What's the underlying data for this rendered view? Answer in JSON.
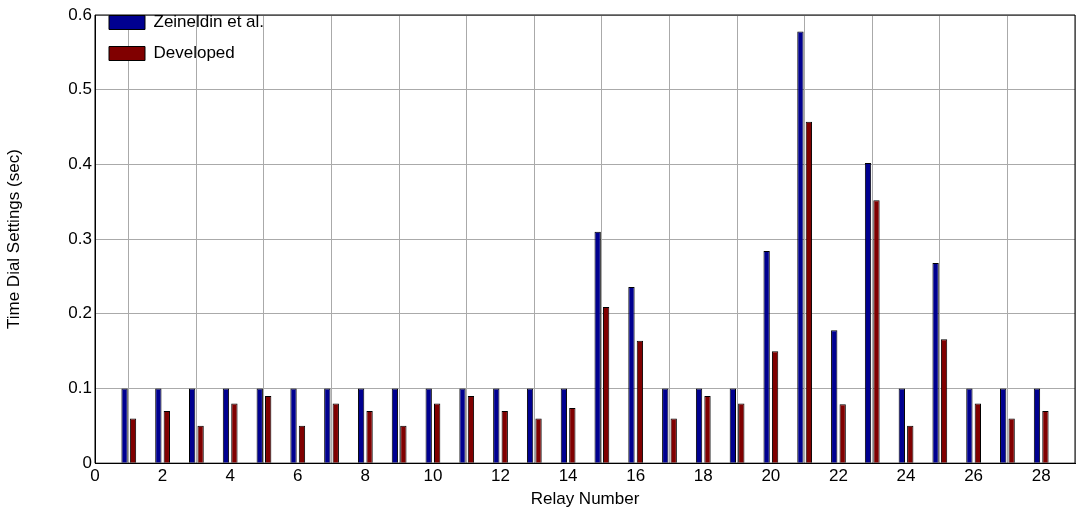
{
  "chart_data": {
    "type": "bar",
    "xlabel": "Relay Number",
    "ylabel": "Time Dial Settings (sec)",
    "x": [
      1,
      2,
      3,
      4,
      5,
      6,
      7,
      8,
      9,
      10,
      11,
      12,
      13,
      14,
      15,
      16,
      17,
      18,
      19,
      20,
      21,
      22,
      23,
      24,
      25,
      26,
      27,
      28
    ],
    "series": [
      {
        "name": "Zeineldin et al.",
        "color": "#000090",
        "values": [
          0.1,
          0.1,
          0.1,
          0.1,
          0.1,
          0.1,
          0.1,
          0.1,
          0.1,
          0.1,
          0.1,
          0.1,
          0.1,
          0.1,
          0.31,
          0.236,
          0.1,
          0.1,
          0.1,
          0.284,
          0.578,
          0.178,
          0.402,
          0.1,
          0.268,
          0.1,
          0.1,
          0.1
        ]
      },
      {
        "name": "Developed",
        "color": "#800000",
        "values": [
          0.06,
          0.07,
          0.05,
          0.08,
          0.09,
          0.05,
          0.08,
          0.07,
          0.05,
          0.08,
          0.09,
          0.07,
          0.06,
          0.074,
          0.209,
          0.164,
          0.06,
          0.09,
          0.08,
          0.15,
          0.457,
          0.079,
          0.352,
          0.05,
          0.166,
          0.08,
          0.06,
          0.07
        ]
      }
    ],
    "xlim": [
      0,
      29
    ],
    "xticks": [
      0,
      2,
      4,
      6,
      8,
      10,
      12,
      14,
      16,
      18,
      20,
      22,
      24,
      26,
      28
    ],
    "ylim": [
      0,
      0.6
    ],
    "yticks": [
      0,
      0.1,
      0.2,
      0.3,
      0.4,
      0.5,
      0.6
    ],
    "grid": true,
    "legend": "top left"
  }
}
